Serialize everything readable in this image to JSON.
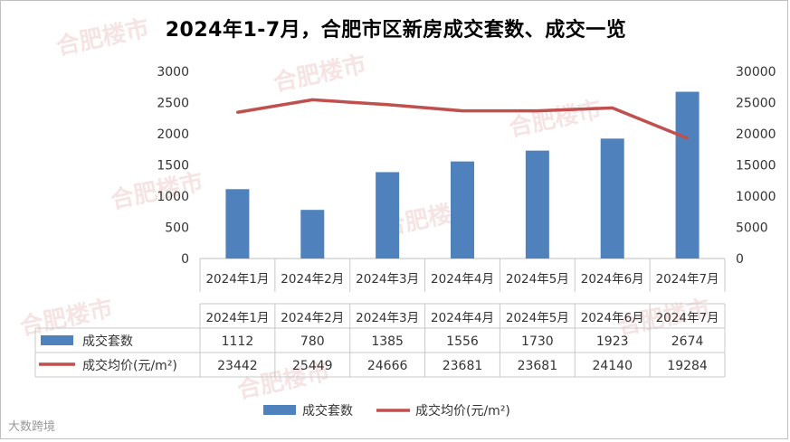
{
  "title": "2024年1-7月，合肥市区新房成交套数、成交一览",
  "watermark": "合肥楼市",
  "credit": "大数跨境",
  "chart_data": {
    "type": "bar",
    "categories": [
      "2024年1月",
      "2024年2月",
      "2024年3月",
      "2024年4月",
      "2024年5月",
      "2024年6月",
      "2024年7月"
    ],
    "series": [
      {
        "name": "成交套数",
        "type": "bar",
        "axis": "left",
        "color": "#4f81bd",
        "values": [
          1112,
          780,
          1385,
          1556,
          1730,
          1923,
          2674
        ]
      },
      {
        "name": "成交均价(元/m²)",
        "type": "line",
        "axis": "right",
        "color": "#c0504d",
        "values": [
          23442,
          25449,
          24666,
          23681,
          23681,
          24140,
          19284
        ]
      }
    ],
    "y_left": {
      "min": 0,
      "max": 3000,
      "ticks": [
        0,
        500,
        1000,
        1500,
        2000,
        2500,
        3000
      ]
    },
    "y_right": {
      "min": 0,
      "max": 30000,
      "ticks": [
        0,
        5000,
        10000,
        15000,
        20000,
        25000,
        30000
      ]
    },
    "grid": false,
    "legend_position": "bottom",
    "data_table": true
  }
}
